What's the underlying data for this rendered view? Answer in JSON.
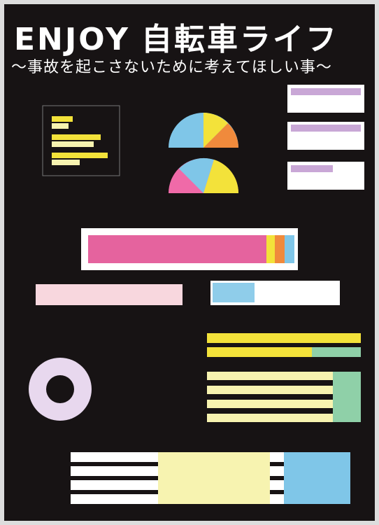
{
  "header": {
    "title_latin": "ENJOY",
    "title_japanese": "自転車ライフ",
    "subtitle": "〜事故を起こさないために考えてほしい事〜"
  }
}
